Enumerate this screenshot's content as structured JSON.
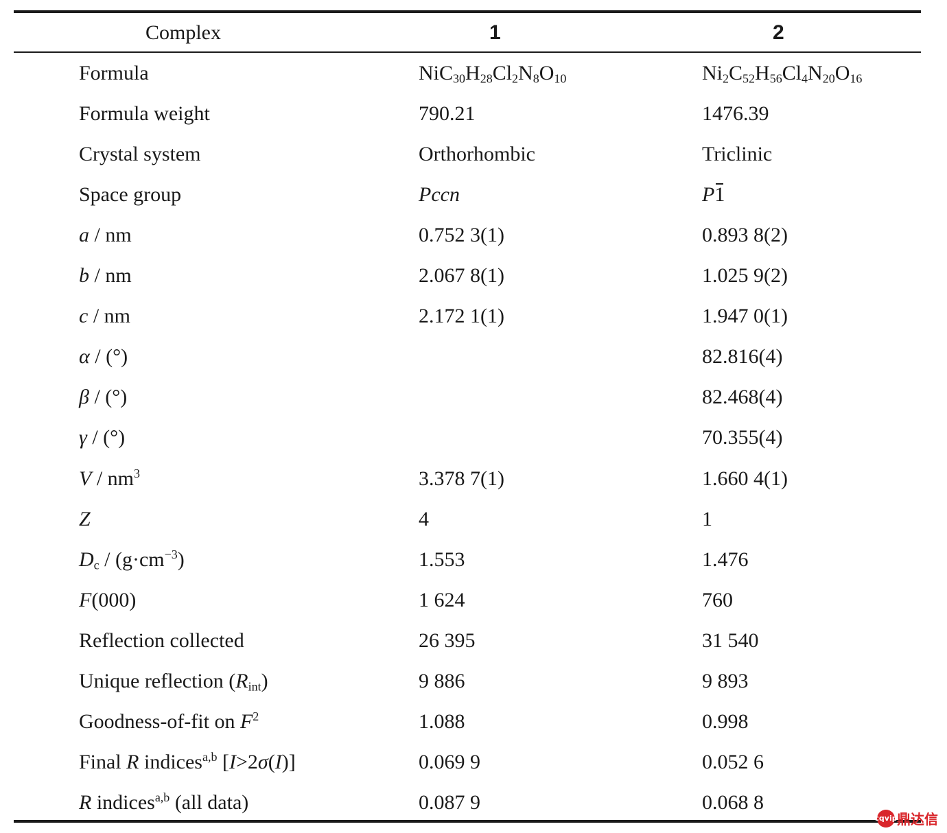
{
  "header": {
    "complex": "Complex",
    "col1": "1",
    "col2": "2"
  },
  "rows": [
    {
      "key": "formula",
      "label": "Formula",
      "v1": "NiC30H28Cl2N8O10",
      "v2": "Ni2C52H56Cl4N20O16"
    },
    {
      "key": "formula-weight",
      "label": "Formula weight",
      "v1": "790.21",
      "v2": "1476.39"
    },
    {
      "key": "crystal-system",
      "label": "Crystal system",
      "v1": "Orthorhombic",
      "v2": "Triclinic"
    },
    {
      "key": "space-group",
      "label": "Space group",
      "v1": "Pccn",
      "v2": "P1̄"
    },
    {
      "key": "a",
      "label": "a / nm",
      "v1": "0.752 3(1)",
      "v2": "0.893 8(2)"
    },
    {
      "key": "b",
      "label": "b / nm",
      "v1": "2.067 8(1)",
      "v2": "1.025 9(2)"
    },
    {
      "key": "c",
      "label": "c / nm",
      "v1": "2.172 1(1)",
      "v2": "1.947 0(1)"
    },
    {
      "key": "alpha",
      "label": "α / (°)",
      "v1": "",
      "v2": "82.816(4)"
    },
    {
      "key": "beta",
      "label": "β / (°)",
      "v1": "",
      "v2": "82.468(4)"
    },
    {
      "key": "gamma",
      "label": "γ / (°)",
      "v1": "",
      "v2": "70.355(4)"
    },
    {
      "key": "volume",
      "label": "V / nm3",
      "v1": "3.378 7(1)",
      "v2": "1.660 4(1)"
    },
    {
      "key": "z",
      "label": "Z",
      "v1": "4",
      "v2": "1"
    },
    {
      "key": "density",
      "label": "Dc / (g·cm-3)",
      "v1": "1.553",
      "v2": "1.476"
    },
    {
      "key": "f000",
      "label": "F(000)",
      "v1": "1 624",
      "v2": "760"
    },
    {
      "key": "reflection-collected",
      "label": "Reflection collected",
      "v1": "26 395",
      "v2": "31 540"
    },
    {
      "key": "unique-reflection",
      "label": "Unique reflection (Rint)",
      "v1": "9 886",
      "v2": "9 893"
    },
    {
      "key": "goodness-of-fit",
      "label": "Goodness-of-fit on F2",
      "v1": "1.088",
      "v2": "0.998"
    },
    {
      "key": "final-r-indices",
      "label": "Final R indicesa,b [I>2σ(I)]",
      "v1": "0.069 9",
      "v2": "0.052 6"
    },
    {
      "key": "r-indices-all",
      "label": "R indicesa,b (all data)",
      "v1": "0.087 9",
      "v2": "0.068 8"
    }
  ],
  "watermark": {
    "mark": "cqvip",
    "text": "鼎达信"
  }
}
